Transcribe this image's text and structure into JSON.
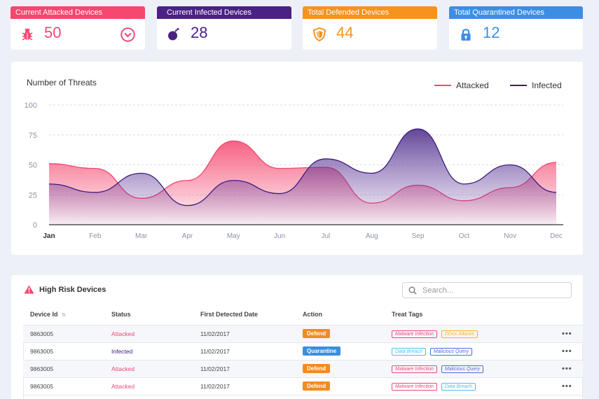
{
  "stats": [
    {
      "title": "Current Attacked Devices",
      "value": "50",
      "color": "#f5476f",
      "icon": "bug-icon"
    },
    {
      "title": "Current Infected Devices",
      "value": "28",
      "color": "#4a2184",
      "icon": "bomb-icon"
    },
    {
      "title": "Total Defended Devices",
      "value": "44",
      "color": "#f6921e",
      "icon": "shield-icon"
    },
    {
      "title": "Total Quarantined Devices",
      "value": "12",
      "color": "#3c8ee4",
      "icon": "lock-icon"
    }
  ],
  "chart_data": {
    "type": "area",
    "title": "Number of Threats",
    "categories": [
      "Jan",
      "Feb",
      "Mar",
      "Apr",
      "May",
      "Jun",
      "Jul",
      "Aug",
      "Sep",
      "Oct",
      "Nov",
      "Dec"
    ],
    "ylim": [
      0,
      100
    ],
    "yticks": [
      "0",
      "25",
      "50",
      "75",
      "100"
    ],
    "grid": true,
    "legend": "top-right",
    "series": [
      {
        "name": "Attacked",
        "color": "#f5476f",
        "values": [
          51,
          47,
          22,
          37,
          70,
          47,
          48,
          18,
          33,
          20,
          31,
          52
        ]
      },
      {
        "name": "Infected",
        "color": "#3d1c80",
        "values": [
          34,
          27,
          43,
          16,
          37,
          26,
          55,
          43,
          80,
          34,
          50,
          27
        ]
      }
    ]
  },
  "risk": {
    "title": "High Risk Devices",
    "search_placeholder": "Search...",
    "columns": [
      "Device Id",
      "Status",
      "First Detected Date",
      "Action",
      "Treat Tags"
    ],
    "rows": [
      {
        "id": "9863005",
        "status": "Attacked",
        "date": "11/02/2017",
        "action": "Defend",
        "tags": [
          "Malware Infection",
          "DDos Attacks"
        ]
      },
      {
        "id": "9863005",
        "status": "Infected",
        "date": "11/02/2017",
        "action": "Quarantine",
        "tags": [
          "Data Breach",
          "Malicious Query"
        ]
      },
      {
        "id": "9863005",
        "status": "Attacked",
        "date": "11/02/2017",
        "action": "Defend",
        "tags": [
          "Malware Infection",
          "Malicious Query"
        ]
      },
      {
        "id": "9863005",
        "status": "Attacked",
        "date": "11/02/2017",
        "action": "Defend",
        "tags": [
          "Malware Infection",
          "Data Breach"
        ]
      }
    ],
    "more_label": "•••"
  },
  "colors": {
    "attacked": "#e9487a",
    "infected": "#3b1b7f",
    "defend": "#f28c1f",
    "quarantine": "#3b8fde",
    "tag_malware": "#f0487a",
    "tag_ddos": "#f3b41b",
    "tag_breach": "#4fc1e0",
    "tag_query": "#4a6fd6"
  }
}
